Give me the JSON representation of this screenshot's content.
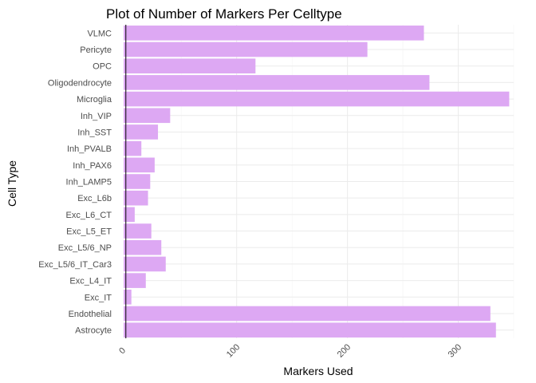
{
  "chart_data": {
    "type": "bar",
    "orientation": "horizontal",
    "title": "Plot of Number of Markers Per Celltype",
    "xlabel": "Markers Used",
    "ylabel": "Cell Type",
    "categories": [
      "VLMC",
      "Pericyte",
      "OPC",
      "Oligodendrocyte",
      "Microglia",
      "Inh_VIP",
      "Inh_SST",
      "Inh_PVALB",
      "Inh_PAX6",
      "Inh_LAMP5",
      "Exc_L6b",
      "Exc_L6_CT",
      "Exc_L5_ET",
      "Exc_L5/6_NP",
      "Exc_L5/6_IT_Car3",
      "Exc_L4_IT",
      "Exc_IT",
      "Endothelial",
      "Astrocyte"
    ],
    "values": [
      269,
      218,
      117,
      274,
      346,
      40,
      29,
      14,
      26,
      22,
      20,
      8,
      23,
      32,
      36,
      18,
      5,
      329,
      334
    ],
    "xlim": [
      -2,
      350
    ],
    "x_ticks": [
      0,
      100,
      200,
      300
    ],
    "x_tick_labels": [
      "0",
      "100",
      "200",
      "300"
    ],
    "x_tick_rotation": -45,
    "bar_color": "#dda8f3",
    "zero_line_color": "#000000",
    "grid": true,
    "legend": "none"
  }
}
